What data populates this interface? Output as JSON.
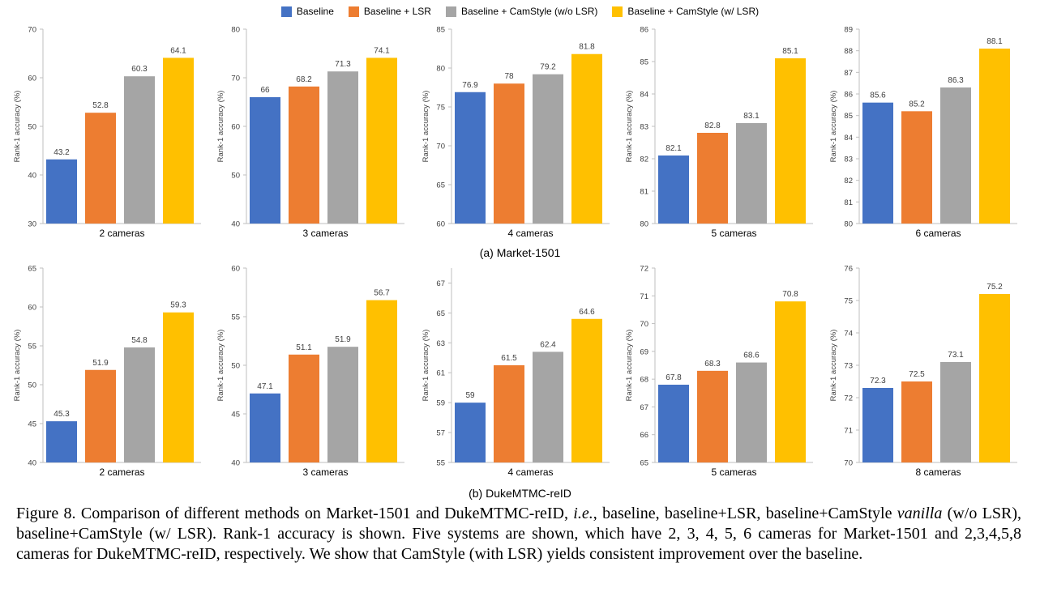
{
  "legend": [
    {
      "label": "Baseline",
      "color": "#4472C4"
    },
    {
      "label": "Baseline + LSR",
      "color": "#ED7D31"
    },
    {
      "label": "Baseline + CamStyle (w/o LSR)",
      "color": "#A5A5A5"
    },
    {
      "label": "Baseline + CamStyle (w/ LSR)",
      "color": "#FFC000"
    }
  ],
  "group_labels": {
    "market": "(a) Market-1501",
    "duke": "(b) DukeMTMC-reID"
  },
  "caption": {
    "p1": "Figure 8. Comparison of different methods on Market-1501 and DukeMTMC-reID, ",
    "ie": "i.e.",
    "p2": ", baseline, baseline+LSR, baseline+CamStyle ",
    "vanilla": "vanilla",
    "p3": " (w/o LSR), baseline+CamStyle (w/ LSR). Rank-1 accuracy is shown.  Five systems are shown, which have 2, 3, 4, 5, 6 cameras for Market-1501 and 2,3,4,5,8 cameras for DukeMTMC-reID, respectively.  We show that CamStyle (with LSR) yields consistent improvement over the baseline."
  },
  "chart_data": [
    {
      "type": "bar",
      "group": "Market-1501",
      "xlabel": "2 cameras",
      "ylabel": "Rank-1 accuracy (%)",
      "ylim": [
        30,
        70
      ],
      "yticks": [
        30,
        40,
        50,
        60,
        70
      ],
      "values": [
        43.2,
        52.8,
        60.3,
        64.1
      ],
      "labels": [
        "43.2",
        "52.8",
        "60.3",
        "64.1"
      ]
    },
    {
      "type": "bar",
      "group": "Market-1501",
      "xlabel": "3 cameras",
      "ylabel": "Rank-1 accuracy (%)",
      "ylim": [
        40,
        80
      ],
      "yticks": [
        40,
        50,
        60,
        70,
        80
      ],
      "values": [
        66,
        68.2,
        71.3,
        74.1
      ],
      "labels": [
        "66",
        "68.2",
        "71.3",
        "74.1"
      ]
    },
    {
      "type": "bar",
      "group": "Market-1501",
      "xlabel": "4 cameras",
      "ylabel": "Rank-1 accuracy (%)",
      "ylim": [
        60,
        85
      ],
      "yticks": [
        60,
        65,
        70,
        75,
        80,
        85
      ],
      "values": [
        76.9,
        78,
        79.2,
        81.8
      ],
      "labels": [
        "76.9",
        "78",
        "79.2",
        "81.8"
      ]
    },
    {
      "type": "bar",
      "group": "Market-1501",
      "xlabel": "5 cameras",
      "ylabel": "Rank-1 accuracy (%)",
      "ylim": [
        80,
        86
      ],
      "yticks": [
        80,
        81,
        82,
        83,
        84,
        85,
        86
      ],
      "values": [
        82.1,
        82.8,
        83.1,
        85.1
      ],
      "labels": [
        "82.1",
        "82.8",
        "83.1",
        "85.1"
      ]
    },
    {
      "type": "bar",
      "group": "Market-1501",
      "xlabel": "6 cameras",
      "ylabel": "Rank-1 accuracy (%)",
      "ylim": [
        80,
        89
      ],
      "yticks": [
        80,
        81,
        82,
        83,
        84,
        85,
        86,
        87,
        88,
        89
      ],
      "values": [
        85.6,
        85.2,
        86.3,
        88.1
      ],
      "labels": [
        "85.6",
        "85.2",
        "86.3",
        "88.1"
      ]
    },
    {
      "type": "bar",
      "group": "DukeMTMC-reID",
      "xlabel": "2 cameras",
      "ylabel": "Rank-1 accuracy (%)",
      "ylim": [
        40,
        65
      ],
      "yticks": [
        40,
        45,
        50,
        55,
        60,
        65
      ],
      "values": [
        45.3,
        51.9,
        54.8,
        59.3
      ],
      "labels": [
        "45.3",
        "51.9",
        "54.8",
        "59.3"
      ]
    },
    {
      "type": "bar",
      "group": "DukeMTMC-reID",
      "xlabel": "3 cameras",
      "ylabel": "Rank-1 accuracy (%)",
      "ylim": [
        40,
        60
      ],
      "yticks": [
        40,
        45,
        50,
        55,
        60
      ],
      "values": [
        47.1,
        51.1,
        51.9,
        56.7
      ],
      "labels": [
        "47.1",
        "51.1",
        "51.9",
        "56.7"
      ]
    },
    {
      "type": "bar",
      "group": "DukeMTMC-reID",
      "xlabel": "4 cameras",
      "ylabel": "Rank-1 accuracy (%)",
      "ylim": [
        55,
        68
      ],
      "yticks": [
        55,
        57,
        59,
        61,
        63,
        65,
        67
      ],
      "values": [
        59,
        61.5,
        62.4,
        64.6
      ],
      "labels": [
        "59",
        "61.5",
        "62.4",
        "64.6"
      ]
    },
    {
      "type": "bar",
      "group": "DukeMTMC-reID",
      "xlabel": "5 cameras",
      "ylabel": "Rank-1 accuracy (%)",
      "ylim": [
        65,
        72
      ],
      "yticks": [
        65,
        66,
        67,
        68,
        69,
        70,
        71,
        72
      ],
      "values": [
        67.8,
        68.3,
        68.6,
        70.8
      ],
      "labels": [
        "67.8",
        "68.3",
        "68.6",
        "70.8"
      ]
    },
    {
      "type": "bar",
      "group": "DukeMTMC-reID",
      "xlabel": "8 cameras",
      "ylabel": "Rank-1 accuracy (%)",
      "ylim": [
        70,
        76
      ],
      "yticks": [
        70,
        71,
        72,
        73,
        74,
        75,
        76
      ],
      "values": [
        72.3,
        72.5,
        73.1,
        75.2
      ],
      "labels": [
        "72.3",
        "72.5",
        "73.1",
        "75.2"
      ]
    }
  ]
}
